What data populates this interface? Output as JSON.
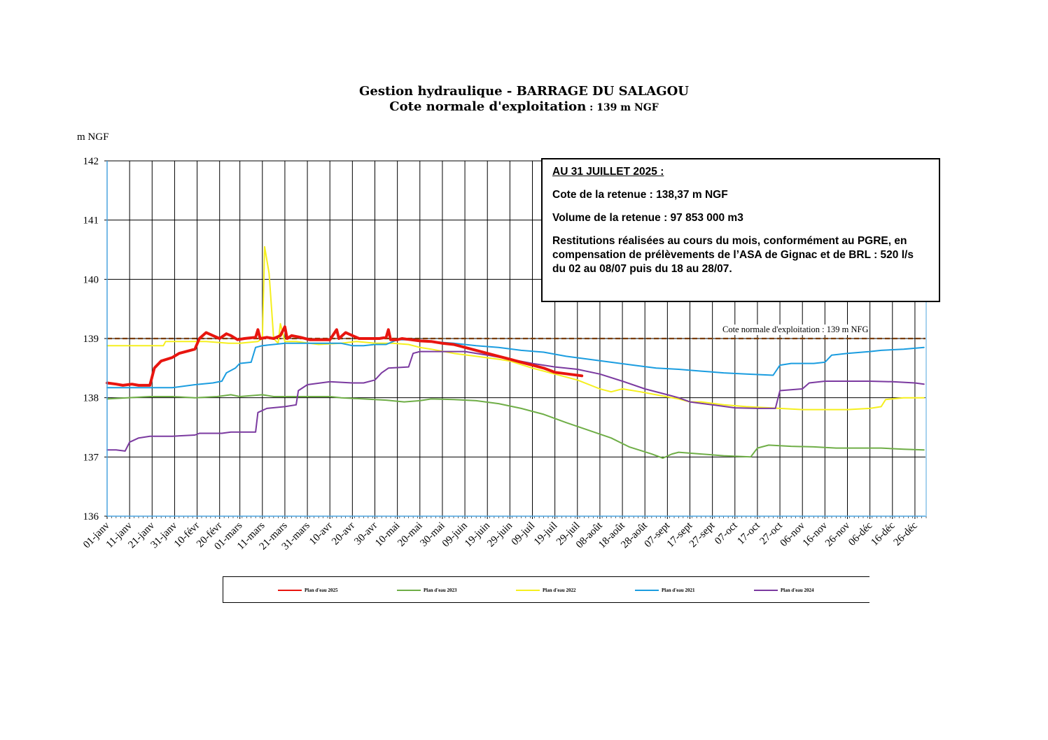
{
  "header": {
    "title": "Gestion hydraulique - BARRAGE DU SALAGOU",
    "subtitle_main": "Cote normale d'exploitation",
    "subtitle_value": " : 139 m NGF"
  },
  "info_box": {
    "heading": "AU 31 JUILLET 2025 :",
    "line1": "Cote de la retenue : 138,37 m NGF",
    "line2": "Volume de la retenue : 97 853 000 m3",
    "line3": "Restitutions réalisées au cours du mois, conformément au PGRE, en compensation de prélèvements de l’ASA de Gignac et de BRL : 520 l/s du 02 au 08/07 puis du 18 au 28/07."
  },
  "reference_label": "Cote normale d'exploitation : 139 m NFG",
  "chart_data": {
    "type": "line",
    "title": "Gestion hydraulique - BARRAGE DU SALAGOU",
    "ylabel": "m NGF",
    "xlabel": "",
    "ylim": [
      136,
      142
    ],
    "xlim": [
      1,
      365
    ],
    "y_ticks": [
      "136",
      "137",
      "138",
      "139",
      "140",
      "141",
      "142"
    ],
    "x_tick_days": [
      1,
      11,
      21,
      31,
      41,
      51,
      60,
      70,
      80,
      90,
      100,
      110,
      120,
      130,
      140,
      150,
      160,
      170,
      180,
      190,
      200,
      210,
      220,
      230,
      240,
      250,
      260,
      270,
      280,
      290,
      300,
      310,
      320,
      330,
      340,
      350,
      360
    ],
    "x_tick_labels": [
      "01-janv",
      "11-janv",
      "21-janv",
      "31-janv",
      "10-févr",
      "20-févr",
      "01-mars",
      "11-mars",
      "21-mars",
      "31-mars",
      "10-avr",
      "20-avr",
      "30-avr",
      "10-mai",
      "20-mai",
      "30-mai",
      "09-juin",
      "19-juin",
      "29-juin",
      "09-juil",
      "19-juil",
      "29-juil",
      "08-août",
      "18-août",
      "28-août",
      "07-sept",
      "17-sept",
      "27-sept",
      "07-oct",
      "17-oct",
      "27-oct",
      "06-nov",
      "16-nov",
      "26-nov",
      "06-déc",
      "16-déc",
      "26-déc"
    ],
    "grid": true,
    "reference_line": {
      "value": 139,
      "style": "dashed",
      "color": "#7a3e00"
    },
    "legend_position": "bottom",
    "series": [
      {
        "name": "Plan d'eau 2025",
        "color": "#e8150f",
        "width": 4,
        "points": [
          [
            1,
            138.25
          ],
          [
            5,
            138.23
          ],
          [
            8,
            138.21
          ],
          [
            12,
            138.23
          ],
          [
            15,
            138.21
          ],
          [
            20,
            138.21
          ],
          [
            22,
            138.5
          ],
          [
            25,
            138.62
          ],
          [
            30,
            138.68
          ],
          [
            33,
            138.75
          ],
          [
            38,
            138.8
          ],
          [
            40,
            138.82
          ],
          [
            42,
            139.0
          ],
          [
            45,
            139.1
          ],
          [
            48,
            139.05
          ],
          [
            51,
            139.0
          ],
          [
            54,
            139.08
          ],
          [
            56,
            139.05
          ],
          [
            59,
            138.98
          ],
          [
            62,
            139.0
          ],
          [
            67,
            139.02
          ],
          [
            68,
            139.15
          ],
          [
            69,
            139.0
          ],
          [
            72,
            139.02
          ],
          [
            75,
            139.0
          ],
          [
            78,
            139.05
          ],
          [
            80,
            139.2
          ],
          [
            81,
            139.0
          ],
          [
            83,
            139.05
          ],
          [
            87,
            139.02
          ],
          [
            91,
            138.98
          ],
          [
            95,
            138.98
          ],
          [
            100,
            138.98
          ],
          [
            103,
            139.15
          ],
          [
            104,
            139.0
          ],
          [
            107,
            139.1
          ],
          [
            110,
            139.05
          ],
          [
            113,
            139.0
          ],
          [
            117,
            139.0
          ],
          [
            122,
            139.0
          ],
          [
            125,
            139.02
          ],
          [
            126,
            139.15
          ],
          [
            127,
            138.98
          ],
          [
            130,
            138.98
          ],
          [
            132,
            139.0
          ],
          [
            136,
            138.98
          ],
          [
            140,
            138.96
          ],
          [
            145,
            138.95
          ],
          [
            150,
            138.92
          ],
          [
            155,
            138.9
          ],
          [
            160,
            138.85
          ],
          [
            165,
            138.8
          ],
          [
            170,
            138.75
          ],
          [
            175,
            138.7
          ],
          [
            180,
            138.65
          ],
          [
            185,
            138.6
          ],
          [
            190,
            138.55
          ],
          [
            195,
            138.5
          ],
          [
            200,
            138.43
          ],
          [
            212,
            138.37
          ]
        ]
      },
      {
        "name": "Plan d'eau 2023",
        "color": "#6fae47",
        "width": 2,
        "points": [
          [
            1,
            137.98
          ],
          [
            10,
            138.0
          ],
          [
            20,
            138.02
          ],
          [
            30,
            138.02
          ],
          [
            40,
            138.0
          ],
          [
            50,
            138.02
          ],
          [
            56,
            138.05
          ],
          [
            60,
            138.02
          ],
          [
            70,
            138.05
          ],
          [
            75,
            138.02
          ],
          [
            85,
            138.02
          ],
          [
            95,
            138.02
          ],
          [
            100,
            138.02
          ],
          [
            105,
            138.0
          ],
          [
            115,
            137.98
          ],
          [
            125,
            137.96
          ],
          [
            133,
            137.93
          ],
          [
            140,
            137.95
          ],
          [
            145,
            137.98
          ],
          [
            155,
            137.97
          ],
          [
            165,
            137.95
          ],
          [
            175,
            137.9
          ],
          [
            185,
            137.82
          ],
          [
            195,
            137.72
          ],
          [
            205,
            137.58
          ],
          [
            215,
            137.45
          ],
          [
            225,
            137.32
          ],
          [
            233,
            137.17
          ],
          [
            243,
            137.05
          ],
          [
            248,
            136.98
          ],
          [
            252,
            137.05
          ],
          [
            255,
            137.08
          ],
          [
            265,
            137.05
          ],
          [
            275,
            137.02
          ],
          [
            287,
            137.0
          ],
          [
            290,
            137.15
          ],
          [
            295,
            137.2
          ],
          [
            305,
            137.18
          ],
          [
            315,
            137.17
          ],
          [
            325,
            137.15
          ],
          [
            335,
            137.15
          ],
          [
            345,
            137.15
          ],
          [
            355,
            137.13
          ],
          [
            364,
            137.12
          ]
        ]
      },
      {
        "name": "Plan d'eau 2022",
        "color": "#f5ef1e",
        "width": 2,
        "points": [
          [
            1,
            138.88
          ],
          [
            10,
            138.88
          ],
          [
            20,
            138.88
          ],
          [
            26,
            138.88
          ],
          [
            27,
            138.95
          ],
          [
            35,
            138.95
          ],
          [
            45,
            138.95
          ],
          [
            55,
            138.92
          ],
          [
            60,
            138.92
          ],
          [
            68,
            138.95
          ],
          [
            70,
            139.0
          ],
          [
            71,
            140.55
          ],
          [
            73,
            140.1
          ],
          [
            75,
            139.0
          ],
          [
            77,
            138.92
          ],
          [
            78,
            139.25
          ],
          [
            80,
            138.95
          ],
          [
            85,
            138.95
          ],
          [
            95,
            138.9
          ],
          [
            105,
            138.92
          ],
          [
            112,
            138.95
          ],
          [
            120,
            138.92
          ],
          [
            128,
            138.92
          ],
          [
            135,
            138.9
          ],
          [
            140,
            138.85
          ],
          [
            145,
            138.82
          ],
          [
            155,
            138.75
          ],
          [
            165,
            138.7
          ],
          [
            175,
            138.65
          ],
          [
            180,
            138.62
          ],
          [
            190,
            138.5
          ],
          [
            200,
            138.4
          ],
          [
            210,
            138.3
          ],
          [
            220,
            138.15
          ],
          [
            225,
            138.1
          ],
          [
            230,
            138.15
          ],
          [
            238,
            138.1
          ],
          [
            245,
            138.05
          ],
          [
            255,
            137.98
          ],
          [
            260,
            137.93
          ],
          [
            265,
            137.93
          ],
          [
            275,
            137.88
          ],
          [
            285,
            137.85
          ],
          [
            300,
            137.82
          ],
          [
            310,
            137.8
          ],
          [
            320,
            137.8
          ],
          [
            330,
            137.8
          ],
          [
            340,
            137.82
          ],
          [
            345,
            137.85
          ],
          [
            347,
            137.97
          ],
          [
            355,
            138.0
          ],
          [
            364,
            138.0
          ]
        ]
      },
      {
        "name": "Plan d'eau 2021",
        "color": "#1b9de0",
        "width": 2,
        "points": [
          [
            1,
            138.17
          ],
          [
            10,
            138.17
          ],
          [
            20,
            138.17
          ],
          [
            30,
            138.17
          ],
          [
            40,
            138.22
          ],
          [
            48,
            138.25
          ],
          [
            52,
            138.28
          ],
          [
            54,
            138.42
          ],
          [
            58,
            138.5
          ],
          [
            60,
            138.58
          ],
          [
            65,
            138.6
          ],
          [
            67,
            138.85
          ],
          [
            70,
            138.88
          ],
          [
            75,
            138.9
          ],
          [
            80,
            138.92
          ],
          [
            85,
            138.92
          ],
          [
            95,
            138.92
          ],
          [
            105,
            138.92
          ],
          [
            110,
            138.88
          ],
          [
            115,
            138.88
          ],
          [
            120,
            138.9
          ],
          [
            125,
            138.9
          ],
          [
            130,
            138.98
          ],
          [
            135,
            138.98
          ],
          [
            145,
            138.95
          ],
          [
            155,
            138.92
          ],
          [
            165,
            138.88
          ],
          [
            175,
            138.85
          ],
          [
            185,
            138.8
          ],
          [
            195,
            138.77
          ],
          [
            205,
            138.7
          ],
          [
            215,
            138.65
          ],
          [
            225,
            138.6
          ],
          [
            235,
            138.55
          ],
          [
            245,
            138.5
          ],
          [
            255,
            138.48
          ],
          [
            265,
            138.45
          ],
          [
            275,
            138.42
          ],
          [
            285,
            138.4
          ],
          [
            297,
            138.38
          ],
          [
            300,
            138.55
          ],
          [
            305,
            138.58
          ],
          [
            315,
            138.58
          ],
          [
            320,
            138.6
          ],
          [
            323,
            138.72
          ],
          [
            330,
            138.75
          ],
          [
            340,
            138.78
          ],
          [
            345,
            138.8
          ],
          [
            355,
            138.82
          ],
          [
            364,
            138.85
          ]
        ]
      },
      {
        "name": "Plan d'eau 2024",
        "color": "#7b3aa0",
        "width": 2,
        "points": [
          [
            1,
            137.12
          ],
          [
            5,
            137.12
          ],
          [
            9,
            137.1
          ],
          [
            11,
            137.25
          ],
          [
            15,
            137.32
          ],
          [
            20,
            137.35
          ],
          [
            30,
            137.35
          ],
          [
            40,
            137.37
          ],
          [
            42,
            137.4
          ],
          [
            52,
            137.4
          ],
          [
            56,
            137.42
          ],
          [
            67,
            137.42
          ],
          [
            68,
            137.75
          ],
          [
            72,
            137.82
          ],
          [
            80,
            137.85
          ],
          [
            85,
            137.88
          ],
          [
            86,
            138.12
          ],
          [
            90,
            138.22
          ],
          [
            100,
            138.27
          ],
          [
            110,
            138.25
          ],
          [
            115,
            138.25
          ],
          [
            120,
            138.3
          ],
          [
            123,
            138.42
          ],
          [
            126,
            138.5
          ],
          [
            135,
            138.52
          ],
          [
            137,
            138.75
          ],
          [
            140,
            138.78
          ],
          [
            150,
            138.78
          ],
          [
            160,
            138.78
          ],
          [
            170,
            138.72
          ],
          [
            180,
            138.65
          ],
          [
            190,
            138.58
          ],
          [
            200,
            138.52
          ],
          [
            210,
            138.48
          ],
          [
            220,
            138.4
          ],
          [
            230,
            138.28
          ],
          [
            240,
            138.15
          ],
          [
            250,
            138.05
          ],
          [
            255,
            138.0
          ],
          [
            260,
            137.93
          ],
          [
            270,
            137.88
          ],
          [
            280,
            137.83
          ],
          [
            290,
            137.82
          ],
          [
            298,
            137.82
          ],
          [
            300,
            138.12
          ],
          [
            310,
            138.15
          ],
          [
            313,
            138.25
          ],
          [
            320,
            138.28
          ],
          [
            330,
            138.28
          ],
          [
            340,
            138.28
          ],
          [
            350,
            138.27
          ],
          [
            360,
            138.25
          ],
          [
            364,
            138.23
          ]
        ]
      }
    ]
  }
}
